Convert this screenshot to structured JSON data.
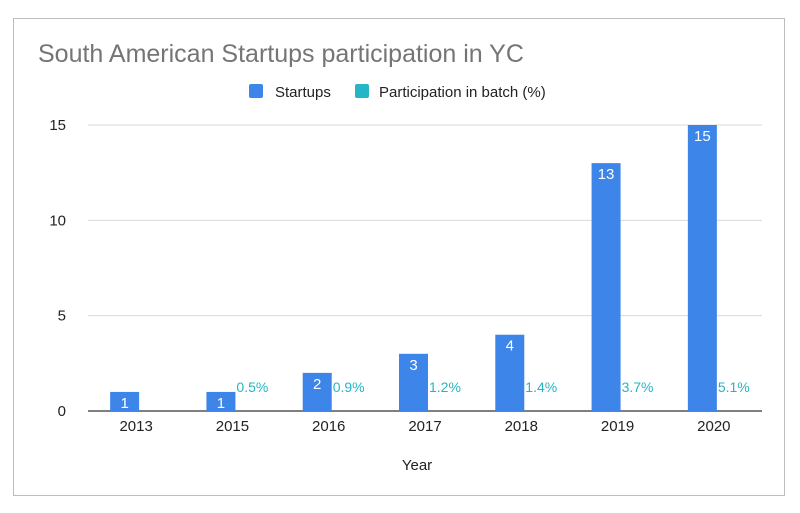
{
  "chart_data": {
    "type": "bar",
    "title": "South American Startups participation in YC",
    "xlabel": "Year",
    "ylabel": "",
    "categories": [
      "2013",
      "2015",
      "2016",
      "2017",
      "2018",
      "2019",
      "2020"
    ],
    "ylim": [
      0,
      15
    ],
    "yticks": [
      "0",
      "5",
      "10",
      "15"
    ],
    "grid": true,
    "legend_position": "top-center",
    "series": [
      {
        "name": "Startups",
        "color": "#3d85e8",
        "values": [
          1,
          1,
          2,
          3,
          4,
          13,
          15
        ],
        "labels": [
          "1",
          "1",
          "2",
          "3",
          "4",
          "13",
          "15"
        ]
      },
      {
        "name": "Participation in batch (%)",
        "color": "#26b5c4",
        "values": [
          null,
          0.5,
          0.9,
          1.2,
          1.4,
          3.7,
          5.1
        ],
        "labels": [
          "",
          "0.5%",
          "0.9%",
          "1.2%",
          "1.4%",
          "3.7%",
          "5.1%"
        ]
      }
    ]
  }
}
